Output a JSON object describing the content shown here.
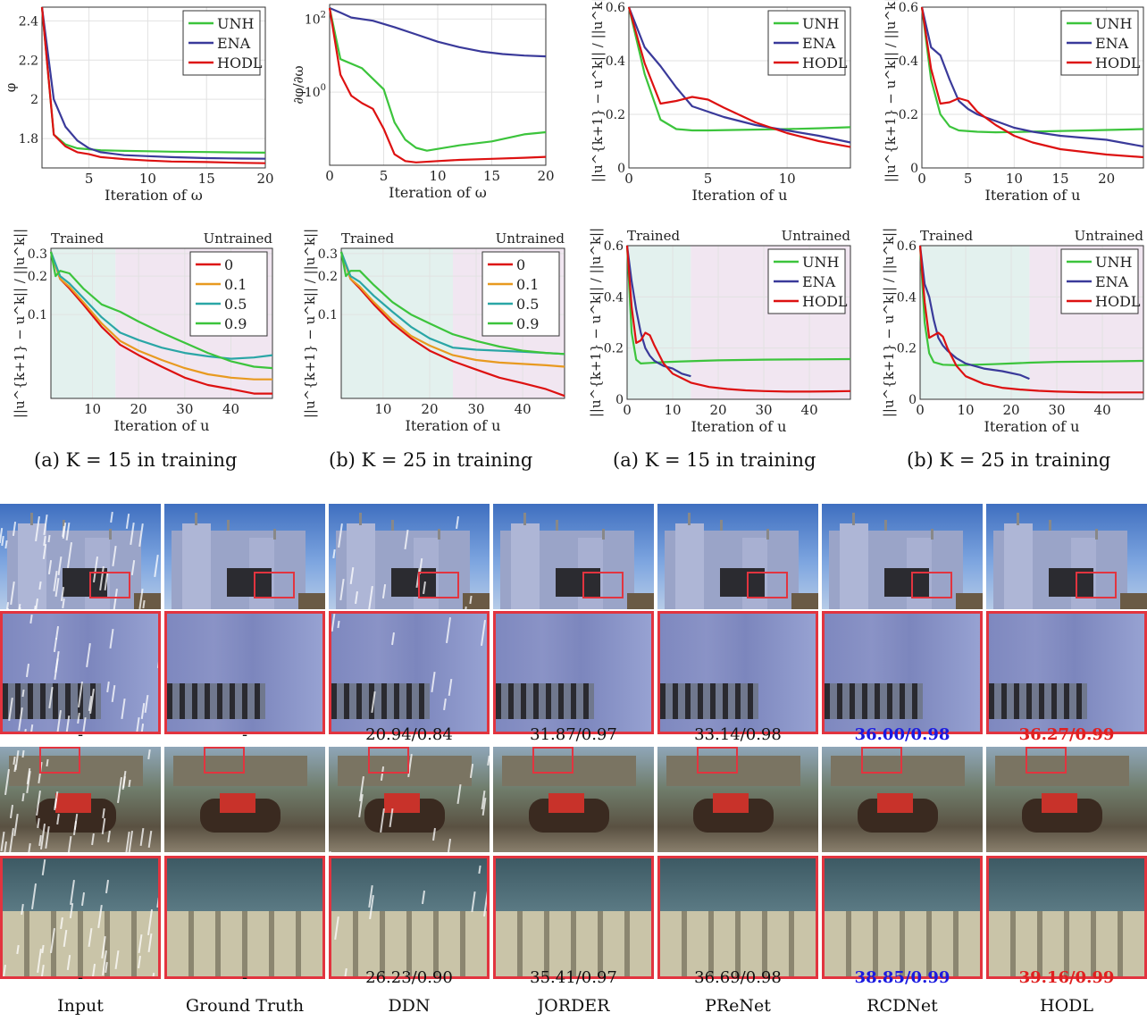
{
  "colors": {
    "unh": "#3cc43c",
    "ena": "#3a3a9a",
    "hodl": "#dd1111",
    "s0": "#dd1111",
    "s01": "#e89a20",
    "s05": "#2aa6a6",
    "s09": "#3cc43c",
    "trained_bg": "#e3f1ee",
    "untrained_bg": "#f1e6f1",
    "trained_text": "#1a8a8a",
    "untrained_text": "#8a2a8a",
    "best": "#e02020",
    "second": "#1a1ae0",
    "zoom_box": "#e2343f"
  },
  "captions": {
    "c1": "(a) K = 15 in training",
    "c2": "(b) K = 25 in training",
    "c3": "(a) K = 15 in training",
    "c4": "(b) K = 25 in training"
  },
  "methods": [
    "Input",
    "Ground Truth",
    "DDN",
    "JORDER",
    "PReNet",
    "RCDNet",
    "HODL"
  ],
  "metrics_row1": [
    "-",
    "-",
    "20.94/0.84",
    "31.87/0.97",
    "33.14/0.98",
    "36.00/0.98",
    "36.27/0.99"
  ],
  "metrics_row2": [
    "-",
    "-",
    "26.23/0.90",
    "35.41/0.97",
    "36.69/0.98",
    "38.85/0.99",
    "39.16/0.99"
  ],
  "chart_data": [
    {
      "type": "line",
      "xlabel": "Iteration of ω",
      "ylabel": "φ",
      "xlim": [
        1,
        20
      ],
      "ylim": [
        1.65,
        2.47
      ],
      "xticks": [
        "5",
        "10",
        "15",
        "20"
      ],
      "yticks": [
        "1.8",
        "2",
        "2.2",
        "2.4"
      ],
      "legend_loc": "top-right",
      "series": [
        {
          "name": "UNH",
          "key": "unh",
          "x": [
            1,
            2,
            3,
            4,
            5,
            6,
            8,
            10,
            12,
            15,
            18,
            20
          ],
          "y": [
            2.47,
            1.82,
            1.77,
            1.75,
            1.745,
            1.74,
            1.737,
            1.735,
            1.733,
            1.731,
            1.729,
            1.728
          ]
        },
        {
          "name": "ENA",
          "key": "ena",
          "x": [
            1,
            2,
            3,
            4,
            5,
            6,
            8,
            10,
            12,
            15,
            18,
            20
          ],
          "y": [
            2.47,
            2.0,
            1.86,
            1.79,
            1.75,
            1.73,
            1.715,
            1.71,
            1.705,
            1.7,
            1.698,
            1.697
          ]
        },
        {
          "name": "HODL",
          "key": "hodl",
          "x": [
            1,
            2,
            3,
            4,
            5,
            6,
            8,
            10,
            12,
            15,
            18,
            20
          ],
          "y": [
            2.47,
            1.82,
            1.76,
            1.73,
            1.72,
            1.705,
            1.695,
            1.688,
            1.683,
            1.68,
            1.676,
            1.674
          ]
        }
      ]
    },
    {
      "type": "line",
      "xlabel": "Iteration of ω",
      "ylabel": "∂φ/∂ω",
      "yscale": "log",
      "xlim": [
        0,
        20
      ],
      "ylim": [
        0.01,
        250
      ],
      "xticks": [
        "0",
        "5",
        "10",
        "15",
        "20"
      ],
      "yticks": [
        "10^0",
        "10^2"
      ],
      "series": [
        {
          "name": "ENA",
          "key": "ena",
          "x": [
            0,
            1,
            2,
            4,
            6,
            8,
            10,
            12,
            14,
            16,
            18,
            20
          ],
          "y": [
            200,
            150,
            110,
            90,
            60,
            38,
            24,
            17,
            13,
            11,
            10,
            9.5
          ]
        },
        {
          "name": "UNH",
          "key": "unh",
          "x": [
            0,
            1,
            3,
            5,
            6,
            7,
            8,
            9,
            10,
            12,
            15,
            18,
            20
          ],
          "y": [
            200,
            8,
            4.5,
            1.2,
            0.15,
            0.05,
            0.03,
            0.025,
            0.028,
            0.035,
            0.045,
            0.07,
            0.08
          ]
        },
        {
          "name": "HODL",
          "key": "hodl",
          "x": [
            0,
            1,
            2,
            3,
            4,
            5,
            6,
            7,
            8,
            10,
            12,
            15,
            18,
            20
          ],
          "y": [
            200,
            3,
            0.8,
            0.5,
            0.35,
            0.1,
            0.02,
            0.013,
            0.012,
            0.013,
            0.014,
            0.015,
            0.016,
            0.017
          ]
        }
      ]
    },
    {
      "type": "line",
      "xlabel": "Iteration of u",
      "ylabel": "||u^{k+1} − u^k|| / ||u^k||",
      "xlim": [
        0,
        14
      ],
      "ylim": [
        0,
        0.6
      ],
      "xticks": [
        "0",
        "5",
        "10"
      ],
      "yticks": [
        "0",
        "0.2",
        "0.4",
        "0.6"
      ],
      "legend_loc": "top-right",
      "series": [
        {
          "name": "UNH",
          "key": "unh",
          "x": [
            0,
            1,
            2,
            3,
            4,
            5,
            7,
            10,
            12,
            14
          ],
          "y": [
            0.6,
            0.35,
            0.18,
            0.145,
            0.14,
            0.14,
            0.142,
            0.145,
            0.148,
            0.152
          ]
        },
        {
          "name": "ENA",
          "key": "ena",
          "x": [
            0,
            1,
            2,
            3,
            4,
            5,
            6,
            8,
            10,
            12,
            14
          ],
          "y": [
            0.6,
            0.45,
            0.38,
            0.3,
            0.23,
            0.21,
            0.19,
            0.16,
            0.14,
            0.12,
            0.095
          ]
        },
        {
          "name": "HODL",
          "key": "hodl",
          "x": [
            0,
            1,
            2,
            3,
            4,
            5,
            6,
            8,
            10,
            12,
            14
          ],
          "y": [
            0.6,
            0.39,
            0.24,
            0.25,
            0.265,
            0.255,
            0.225,
            0.17,
            0.13,
            0.1,
            0.078
          ]
        }
      ]
    },
    {
      "type": "line",
      "xlabel": "Iteration of u",
      "ylabel": "||u^{k+1} − u^k|| / ||u^k||",
      "xlim": [
        0,
        24
      ],
      "ylim": [
        0,
        0.6
      ],
      "xticks": [
        "0",
        "5",
        "10",
        "15",
        "20"
      ],
      "yticks": [
        "0",
        "0.2",
        "0.4",
        "0.6"
      ],
      "legend_loc": "top-right",
      "series": [
        {
          "name": "UNH",
          "key": "unh",
          "x": [
            0,
            1,
            2,
            3,
            4,
            6,
            8,
            10,
            14,
            18,
            24
          ],
          "y": [
            0.6,
            0.33,
            0.2,
            0.155,
            0.14,
            0.135,
            0.133,
            0.134,
            0.137,
            0.14,
            0.145
          ]
        },
        {
          "name": "ENA",
          "key": "ena",
          "x": [
            0,
            1,
            2,
            3,
            4,
            5,
            6,
            8,
            10,
            12,
            15,
            20,
            24
          ],
          "y": [
            0.6,
            0.45,
            0.42,
            0.33,
            0.25,
            0.22,
            0.2,
            0.175,
            0.15,
            0.135,
            0.12,
            0.105,
            0.08
          ]
        },
        {
          "name": "HODL",
          "key": "hodl",
          "x": [
            0,
            1,
            2,
            3,
            4,
            5,
            6,
            8,
            10,
            12,
            15,
            20,
            24
          ],
          "y": [
            0.6,
            0.37,
            0.24,
            0.245,
            0.26,
            0.25,
            0.21,
            0.16,
            0.12,
            0.095,
            0.07,
            0.05,
            0.04
          ]
        }
      ]
    },
    {
      "type": "line",
      "xlabel": "Iteration of u",
      "ylabel": "||u^{k+1} − u^k|| / ||u^k||",
      "yscale": "log",
      "xlim": [
        1,
        49
      ],
      "ylim": [
        0.022,
        0.33
      ],
      "xticks": [
        "10",
        "20",
        "30",
        "40"
      ],
      "yticks": [
        "0.1",
        "0.2",
        "0.3"
      ],
      "shade": {
        "trained_until": 15,
        "trained_label": "Trained",
        "untrained_label": "Untrained"
      },
      "legend_loc": "top-right",
      "series": [
        {
          "name": "0",
          "key": "s0",
          "x": [
            1,
            3,
            5,
            8,
            12,
            16,
            20,
            25,
            30,
            35,
            40,
            45,
            49
          ],
          "y": [
            0.31,
            0.19,
            0.16,
            0.12,
            0.08,
            0.058,
            0.048,
            0.039,
            0.032,
            0.028,
            0.026,
            0.024,
            0.024
          ]
        },
        {
          "name": "0.1",
          "key": "s01",
          "x": [
            1,
            3,
            5,
            8,
            12,
            16,
            20,
            25,
            30,
            35,
            40,
            45,
            49
          ],
          "y": [
            0.31,
            0.19,
            0.165,
            0.125,
            0.085,
            0.062,
            0.052,
            0.044,
            0.038,
            0.034,
            0.032,
            0.031,
            0.031
          ]
        },
        {
          "name": "0.5",
          "key": "s05",
          "x": [
            1,
            3,
            5,
            8,
            12,
            16,
            20,
            25,
            30,
            35,
            40,
            45,
            49
          ],
          "y": [
            0.31,
            0.2,
            0.175,
            0.135,
            0.095,
            0.072,
            0.063,
            0.055,
            0.05,
            0.047,
            0.045,
            0.046,
            0.048
          ]
        },
        {
          "name": "0.9",
          "key": "s09",
          "x": [
            1,
            2,
            3,
            5,
            8,
            12,
            16,
            20,
            25,
            30,
            35,
            40,
            45,
            49
          ],
          "y": [
            0.31,
            0.2,
            0.22,
            0.21,
            0.16,
            0.12,
            0.105,
            0.088,
            0.072,
            0.06,
            0.05,
            0.043,
            0.039,
            0.038
          ]
        }
      ]
    },
    {
      "type": "line",
      "xlabel": "Iteration of u",
      "ylabel": "||u^{k+1} − u^k|| / ||u^k||",
      "yscale": "log",
      "xlim": [
        1,
        49
      ],
      "ylim": [
        0.022,
        0.33
      ],
      "xticks": [
        "10",
        "20",
        "30",
        "40"
      ],
      "yticks": [
        "0.1",
        "0.2",
        "0.3"
      ],
      "shade": {
        "trained_until": 25,
        "trained_label": "Trained",
        "untrained_label": "Untrained"
      },
      "legend_loc": "top-right",
      "series": [
        {
          "name": "0",
          "key": "s0",
          "x": [
            1,
            3,
            5,
            8,
            12,
            16,
            20,
            25,
            30,
            35,
            40,
            45,
            49
          ],
          "y": [
            0.31,
            0.19,
            0.16,
            0.12,
            0.085,
            0.065,
            0.052,
            0.043,
            0.037,
            0.032,
            0.029,
            0.026,
            0.023
          ]
        },
        {
          "name": "0.1",
          "key": "s01",
          "x": [
            1,
            3,
            5,
            8,
            12,
            16,
            20,
            25,
            30,
            35,
            40,
            45,
            49
          ],
          "y": [
            0.31,
            0.19,
            0.165,
            0.125,
            0.09,
            0.068,
            0.057,
            0.048,
            0.044,
            0.042,
            0.041,
            0.04,
            0.039
          ]
        },
        {
          "name": "0.5",
          "key": "s05",
          "x": [
            1,
            3,
            5,
            8,
            12,
            16,
            20,
            25,
            30,
            35,
            40,
            45,
            49
          ],
          "y": [
            0.31,
            0.2,
            0.18,
            0.14,
            0.105,
            0.08,
            0.065,
            0.055,
            0.053,
            0.052,
            0.051,
            0.05,
            0.049
          ]
        },
        {
          "name": "0.9",
          "key": "s09",
          "x": [
            1,
            2,
            3,
            5,
            8,
            12,
            16,
            20,
            25,
            30,
            35,
            40,
            45,
            49
          ],
          "y": [
            0.31,
            0.2,
            0.22,
            0.22,
            0.17,
            0.125,
            0.1,
            0.085,
            0.07,
            0.062,
            0.056,
            0.052,
            0.05,
            0.049
          ]
        }
      ]
    },
    {
      "type": "line",
      "xlabel": "Iteration of u",
      "ylabel": "||u^{k+1} − u^k|| / ||u^k||",
      "xlim": [
        0,
        49
      ],
      "ylim": [
        0,
        0.6
      ],
      "xticks": [
        "0",
        "10",
        "20",
        "30",
        "40"
      ],
      "yticks": [
        "0",
        "0.2",
        "0.4",
        "0.6"
      ],
      "shade": {
        "trained_until": 14,
        "trained_label": "Trained",
        "untrained_label": "Untrained"
      },
      "legend_loc": "top-right",
      "series": [
        {
          "name": "UNH",
          "key": "unh",
          "x": [
            0,
            1,
            2,
            3,
            5,
            8,
            12,
            16,
            20,
            30,
            40,
            49
          ],
          "y": [
            0.6,
            0.26,
            0.155,
            0.14,
            0.142,
            0.145,
            0.148,
            0.15,
            0.152,
            0.155,
            0.156,
            0.157
          ]
        },
        {
          "name": "ENA",
          "key": "ena",
          "x": [
            0,
            1,
            2,
            3,
            4,
            5,
            6,
            8,
            10,
            12,
            14
          ],
          "y": [
            0.6,
            0.46,
            0.35,
            0.26,
            0.2,
            0.17,
            0.15,
            0.13,
            0.12,
            0.1,
            0.09
          ]
        },
        {
          "name": "HODL",
          "key": "hodl",
          "x": [
            0,
            1,
            2,
            3,
            4,
            5,
            6,
            8,
            10,
            14,
            18,
            22,
            26,
            30,
            35,
            40,
            45,
            49
          ],
          "y": [
            0.6,
            0.36,
            0.22,
            0.23,
            0.26,
            0.25,
            0.21,
            0.14,
            0.1,
            0.065,
            0.048,
            0.04,
            0.035,
            0.032,
            0.03,
            0.03,
            0.031,
            0.032
          ]
        }
      ]
    },
    {
      "type": "line",
      "xlabel": "Iteration of u",
      "ylabel": "||u^{k+1} − u^k|| / ||u^k||",
      "xlim": [
        0,
        49
      ],
      "ylim": [
        0,
        0.6
      ],
      "xticks": [
        "0",
        "10",
        "20",
        "30",
        "40"
      ],
      "yticks": [
        "0",
        "0.2",
        "0.4",
        "0.6"
      ],
      "shade": {
        "trained_until": 24,
        "trained_label": "Trained",
        "untrained_label": "Untrained"
      },
      "legend_loc": "top-right",
      "series": [
        {
          "name": "UNH",
          "key": "unh",
          "x": [
            0,
            1,
            2,
            3,
            5,
            8,
            12,
            16,
            20,
            24,
            30,
            40,
            49
          ],
          "y": [
            0.6,
            0.3,
            0.18,
            0.145,
            0.135,
            0.133,
            0.135,
            0.137,
            0.14,
            0.143,
            0.146,
            0.148,
            0.15
          ]
        },
        {
          "name": "ENA",
          "key": "ena",
          "x": [
            0,
            1,
            2,
            3,
            4,
            5,
            6,
            8,
            10,
            14,
            18,
            22,
            24
          ],
          "y": [
            0.6,
            0.45,
            0.4,
            0.31,
            0.24,
            0.21,
            0.19,
            0.16,
            0.14,
            0.12,
            0.11,
            0.095,
            0.08
          ]
        },
        {
          "name": "HODL",
          "key": "hodl",
          "x": [
            0,
            1,
            2,
            3,
            4,
            5,
            6,
            8,
            10,
            14,
            18,
            22,
            26,
            30,
            35,
            40,
            45,
            49
          ],
          "y": [
            0.6,
            0.38,
            0.24,
            0.25,
            0.26,
            0.245,
            0.2,
            0.13,
            0.09,
            0.06,
            0.045,
            0.038,
            0.033,
            0.03,
            0.028,
            0.027,
            0.027,
            0.027
          ]
        }
      ]
    }
  ]
}
